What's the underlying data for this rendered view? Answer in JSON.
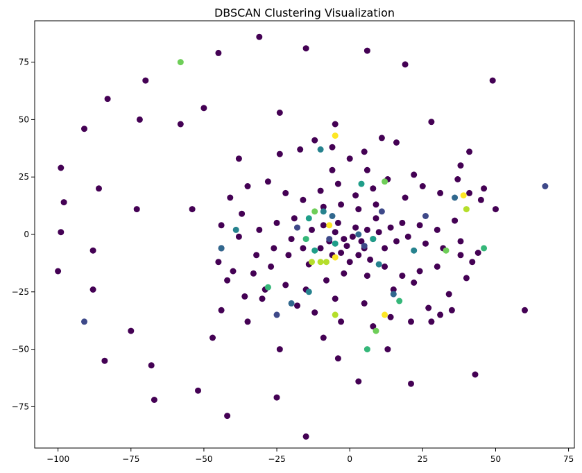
{
  "chart_data": {
    "type": "scatter",
    "title": "DBSCAN Clustering Visualization",
    "xlabel": "",
    "ylabel": "",
    "xlim": [
      -108,
      77
    ],
    "ylim": [
      -93,
      93
    ],
    "xticks": [
      -100,
      -75,
      -50,
      -25,
      0,
      25,
      50,
      75
    ],
    "yticks": [
      -75,
      -50,
      -25,
      0,
      25,
      50,
      75
    ],
    "xtick_labels": [
      "−100",
      "−75",
      "−50",
      "−25",
      "0",
      "25",
      "50",
      "75"
    ],
    "ytick_labels": [
      "−75",
      "−50",
      "−25",
      "0",
      "25",
      "50",
      "75"
    ],
    "grid": false,
    "legend": "none",
    "colormap": "viridis",
    "series": [
      {
        "cluster": -1,
        "color": "#440154",
        "points": [
          [
            -31,
            86
          ],
          [
            -15,
            81
          ],
          [
            6,
            80
          ],
          [
            -45,
            79
          ],
          [
            19,
            74
          ],
          [
            -70,
            67
          ],
          [
            49,
            67
          ],
          [
            -83,
            59
          ],
          [
            -50,
            55
          ],
          [
            -24,
            53
          ],
          [
            -72,
            50
          ],
          [
            28,
            49
          ],
          [
            -91,
            46
          ],
          [
            -58,
            48
          ],
          [
            -5,
            48
          ],
          [
            -99,
            29
          ],
          [
            -98,
            14
          ],
          [
            -86,
            20
          ],
          [
            -54,
            11
          ],
          [
            -73,
            11
          ],
          [
            -99,
            1
          ],
          [
            -100,
            -16
          ],
          [
            -88,
            -7
          ],
          [
            -88,
            -24
          ],
          [
            -84,
            -55
          ],
          [
            -75,
            -42
          ],
          [
            -68,
            -57
          ],
          [
            -67,
            -72
          ],
          [
            -52,
            -68
          ],
          [
            -42,
            -79
          ],
          [
            -25,
            -71
          ],
          [
            -15,
            -88
          ],
          [
            3,
            -64
          ],
          [
            21,
            -65
          ],
          [
            43,
            -61
          ],
          [
            60,
            -33
          ],
          [
            -47,
            -45
          ],
          [
            -24,
            -50
          ],
          [
            -4,
            -54
          ],
          [
            13,
            -50
          ],
          [
            -35,
            -38
          ],
          [
            -44,
            -33
          ],
          [
            -36,
            -27
          ],
          [
            -29,
            -24
          ],
          [
            -18,
            -31
          ],
          [
            -12,
            -34
          ],
          [
            -9,
            -45
          ],
          [
            -3,
            -38
          ],
          [
            8,
            -40
          ],
          [
            14,
            -36
          ],
          [
            21,
            -38
          ],
          [
            27,
            -32
          ],
          [
            31,
            -35
          ],
          [
            35,
            -33
          ],
          [
            28,
            -38
          ],
          [
            -45,
            -12
          ],
          [
            -40,
            -16
          ],
          [
            -33,
            -17
          ],
          [
            -27,
            -14
          ],
          [
            -21,
            -9
          ],
          [
            -14,
            -13
          ],
          [
            -8,
            -20
          ],
          [
            -2,
            -17
          ],
          [
            6,
            -18
          ],
          [
            12,
            -14
          ],
          [
            18,
            -18
          ],
          [
            24,
            -16
          ],
          [
            30,
            -14
          ],
          [
            38,
            -9
          ],
          [
            42,
            -12
          ],
          [
            -44,
            4
          ],
          [
            -37,
            9
          ],
          [
            -31,
            2
          ],
          [
            -25,
            5
          ],
          [
            -19,
            7
          ],
          [
            -13,
            2
          ],
          [
            -9,
            4
          ],
          [
            -5,
            1
          ],
          [
            -2,
            -2
          ],
          [
            1,
            -1
          ],
          [
            2,
            3
          ],
          [
            4,
            -3
          ],
          [
            6,
            2
          ],
          [
            8,
            -2
          ],
          [
            10,
            1
          ],
          [
            14,
            3
          ],
          [
            18,
            5
          ],
          [
            24,
            4
          ],
          [
            30,
            2
          ],
          [
            36,
            6
          ],
          [
            -41,
            16
          ],
          [
            -35,
            21
          ],
          [
            -28,
            23
          ],
          [
            -22,
            18
          ],
          [
            -16,
            15
          ],
          [
            -10,
            19
          ],
          [
            -4,
            22
          ],
          [
            2,
            17
          ],
          [
            8,
            20
          ],
          [
            13,
            24
          ],
          [
            19,
            16
          ],
          [
            25,
            21
          ],
          [
            31,
            18
          ],
          [
            37,
            24
          ],
          [
            41,
            18
          ],
          [
            45,
            15
          ],
          [
            50,
            11
          ],
          [
            -38,
            33
          ],
          [
            -24,
            35
          ],
          [
            -17,
            37
          ],
          [
            -12,
            41
          ],
          [
            -6,
            38
          ],
          [
            0,
            33
          ],
          [
            5,
            36
          ],
          [
            11,
            42
          ],
          [
            16,
            40
          ],
          [
            22,
            26
          ],
          [
            38,
            30
          ],
          [
            41,
            36
          ],
          [
            46,
            20
          ],
          [
            -3,
            -8
          ],
          [
            -1,
            -5
          ],
          [
            3,
            -9
          ],
          [
            5,
            -6
          ],
          [
            0,
            -12
          ],
          [
            -6,
            -9
          ],
          [
            7,
            -11
          ],
          [
            -4,
            5
          ],
          [
            -7,
            -3
          ],
          [
            9,
            7
          ],
          [
            -10,
            -6
          ],
          [
            12,
            -6
          ],
          [
            -16,
            -6
          ],
          [
            16,
            -3
          ],
          [
            -20,
            -2
          ],
          [
            20,
            -1
          ],
          [
            -26,
            -6
          ],
          [
            26,
            -4
          ],
          [
            -32,
            -9
          ],
          [
            32,
            -6
          ],
          [
            -38,
            -1
          ],
          [
            38,
            -3
          ],
          [
            -44,
            -6
          ],
          [
            44,
            -8
          ],
          [
            -9,
            12
          ],
          [
            -3,
            13
          ],
          [
            3,
            11
          ],
          [
            9,
            13
          ],
          [
            -15,
            -24
          ],
          [
            15,
            -24
          ],
          [
            -5,
            -28
          ],
          [
            5,
            -30
          ],
          [
            -22,
            -22
          ],
          [
            22,
            -21
          ],
          [
            -30,
            -28
          ],
          [
            34,
            -26
          ],
          [
            -42,
            -20
          ],
          [
            40,
            -19
          ],
          [
            -6,
            28
          ],
          [
            6,
            28
          ]
        ]
      },
      {
        "cluster": 0,
        "color": "#3e4989",
        "points": [
          [
            67,
            21
          ],
          [
            -91,
            -38
          ],
          [
            -25,
            -35
          ],
          [
            11,
            10
          ],
          [
            26,
            8
          ],
          [
            -18,
            3
          ],
          [
            5,
            -5
          ],
          [
            -7,
            -2
          ]
        ]
      },
      {
        "cluster": 1,
        "color": "#31688e",
        "points": [
          [
            -44,
            -6
          ],
          [
            -6,
            8
          ],
          [
            15,
            -26
          ],
          [
            36,
            16
          ],
          [
            -20,
            -30
          ],
          [
            3,
            0
          ]
        ]
      },
      {
        "cluster": 2,
        "color": "#26828e",
        "points": [
          [
            -14,
            -25
          ],
          [
            22,
            -7
          ],
          [
            -10,
            37
          ],
          [
            -39,
            2
          ],
          [
            -9,
            10
          ],
          [
            10,
            -13
          ]
        ]
      },
      {
        "cluster": 3,
        "color": "#1f9e89",
        "points": [
          [
            -12,
            -7
          ],
          [
            4,
            22
          ],
          [
            -14,
            7
          ],
          [
            8,
            -2
          ],
          [
            -5,
            -4
          ]
        ]
      },
      {
        "cluster": 4,
        "color": "#35b779",
        "points": [
          [
            46,
            -6
          ],
          [
            17,
            -29
          ],
          [
            -28,
            -23
          ],
          [
            -15,
            -2
          ],
          [
            6,
            -50
          ]
        ]
      },
      {
        "cluster": 5,
        "color": "#6ece58",
        "points": [
          [
            -58,
            75
          ],
          [
            12,
            23
          ],
          [
            -12,
            10
          ],
          [
            33,
            -7
          ],
          [
            9,
            -42
          ]
        ]
      },
      {
        "cluster": 6,
        "color": "#b5de2b",
        "points": [
          [
            -10,
            -12
          ],
          [
            40,
            11
          ],
          [
            -13,
            -12
          ],
          [
            -5,
            -35
          ],
          [
            -8,
            -12
          ]
        ]
      },
      {
        "cluster": 7,
        "color": "#fde725",
        "points": [
          [
            -5,
            43
          ],
          [
            -7,
            4
          ],
          [
            39,
            17
          ],
          [
            -5,
            -10
          ],
          [
            12,
            -35
          ]
        ]
      }
    ]
  }
}
